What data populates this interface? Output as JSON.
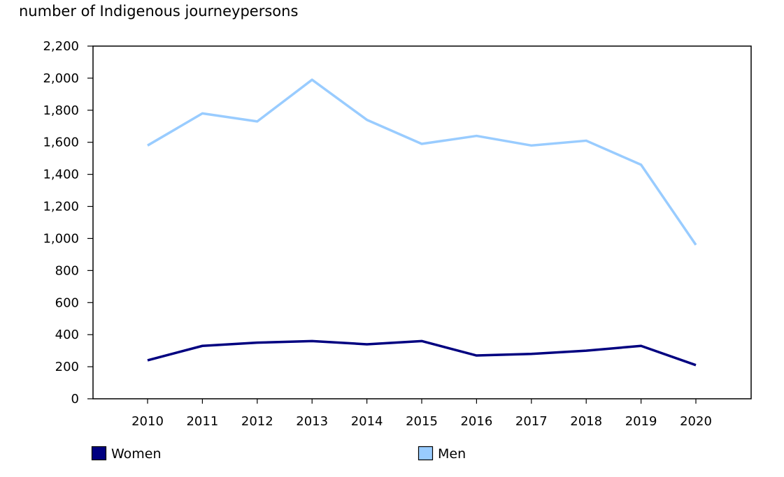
{
  "chart_data": {
    "type": "line",
    "title": "number of Indigenous journeypersons",
    "xlabel": "",
    "ylabel": "number of Indigenous journeypersons",
    "categories": [
      "2010",
      "2011",
      "2012",
      "2013",
      "2014",
      "2015",
      "2016",
      "2017",
      "2018",
      "2019",
      "2020"
    ],
    "series": [
      {
        "name": "Women",
        "color": "#000080",
        "values": [
          240,
          330,
          350,
          360,
          340,
          360,
          270,
          280,
          300,
          330,
          210
        ]
      },
      {
        "name": "Men",
        "color": "#99CCFF",
        "values": [
          1580,
          1780,
          1730,
          1990,
          1740,
          1590,
          1640,
          1580,
          1610,
          1460,
          960
        ]
      }
    ],
    "ylim": [
      0,
      2200
    ],
    "yticks": [
      0,
      200,
      400,
      600,
      800,
      1000,
      1200,
      1400,
      1600,
      1800,
      2000,
      2200
    ],
    "ytick_labels": [
      "0",
      "200",
      "400",
      "600",
      "800",
      "1,000",
      "1,200",
      "1,400",
      "1,600",
      "1,800",
      "2,000",
      "2,200"
    ],
    "grid": false,
    "legend_position": "bottom"
  }
}
